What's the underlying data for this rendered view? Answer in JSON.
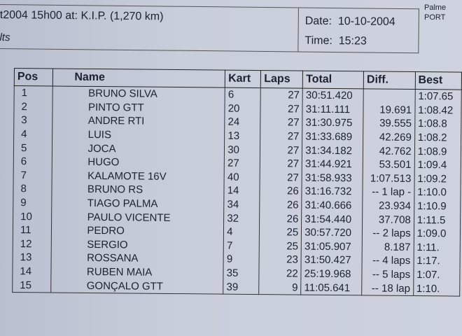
{
  "header": {
    "event": "t2004 15h00 at: K.I.P. (1,270 km)",
    "subtitle": "lts",
    "date_label": "Date:",
    "date": "10-10-2004",
    "time_label": "Time:",
    "time": "15:23",
    "side_line1": "Palme",
    "side_line2": "PORT"
  },
  "table": {
    "columns": [
      "Pos",
      "Name",
      "Kart",
      "Laps",
      "Total",
      "Diff.",
      "Best"
    ],
    "rows": [
      [
        "1",
        "BRUNO SILVA",
        "6",
        "27",
        "30:51.420",
        "",
        "1:07.65"
      ],
      [
        "2",
        "PINTO GTT",
        "20",
        "27",
        "31:11.111",
        "19.691",
        "1:08.42"
      ],
      [
        "3",
        "ANDRE RTI",
        "24",
        "27",
        "31:30.975",
        "39.555",
        "1:08.8"
      ],
      [
        "4",
        "LUIS",
        "13",
        "27",
        "31:33.689",
        "42.269",
        "1:08.2"
      ],
      [
        "5",
        "JOCA",
        "30",
        "27",
        "31:34.182",
        "42.762",
        "1:08.9"
      ],
      [
        "6",
        "HUGO",
        "27",
        "27",
        "31:44.921",
        "53.501",
        "1:09.4"
      ],
      [
        "7",
        "KALAMOTE 16V",
        "40",
        "27",
        "31:58.933",
        "1:07.513",
        "1:09.2"
      ],
      [
        "8",
        "BRUNO RS",
        "14",
        "26",
        "31:16.732",
        "-- 1 lap -",
        "1:10.0"
      ],
      [
        "9",
        "TIAGO PALMA",
        "34",
        "26",
        "31:40.666",
        "23.934",
        "1:10.9"
      ],
      [
        "10",
        "PAULO VICENTE",
        "32",
        "26",
        "31:54.440",
        "37.708",
        "1:11.5"
      ],
      [
        "11",
        "PEDRO",
        "4",
        "25",
        "30:57.720",
        "-- 2 laps",
        "1:09.0"
      ],
      [
        "12",
        "SERGIO",
        "7",
        "25",
        "31:05.907",
        "8.187",
        "1:11."
      ],
      [
        "13",
        "ROSSANA",
        "9",
        "23",
        "31:50.427",
        "-- 4 laps",
        "1:17."
      ],
      [
        "14",
        "RUBEN MAIA",
        "35",
        "22",
        "25:19.968",
        "-- 5 laps",
        "1:07."
      ],
      [
        "15",
        "GONÇALO GTT",
        "39",
        "9",
        "11:05.641",
        "-- 18 lap",
        "1:10."
      ]
    ]
  }
}
